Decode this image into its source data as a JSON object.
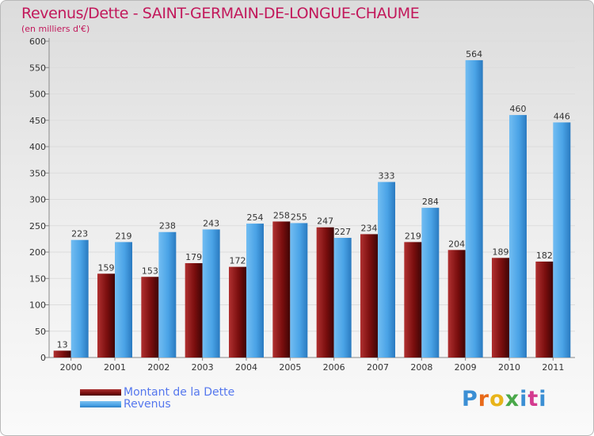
{
  "header": {
    "title": "Revenus/Dette - SAINT-GERMAIN-DE-LONGUE-CHAUME",
    "subtitle": "(en milliers d'€)"
  },
  "legend": {
    "items": [
      {
        "label": "Montant de la Dette",
        "color": "#7a0e0e"
      },
      {
        "label": "Revenus",
        "color": "#4aa3e6"
      }
    ]
  },
  "logo": {
    "text": "Proxiti",
    "colors": [
      "#3b8fd4",
      "#e86a1a",
      "#e8b41a",
      "#4aa84a",
      "#3b8fd4",
      "#d43b8f",
      "#3b8fd4"
    ]
  },
  "colors": {
    "dette": "#7a0e0e",
    "revenus": "#4aa3e6",
    "axis": "#888888",
    "grid": "#dddddd"
  },
  "chart_data": {
    "type": "bar",
    "title": "Revenus/Dette - SAINT-GERMAIN-DE-LONGUE-CHAUME",
    "ylabel": "(en milliers d'€)",
    "categories": [
      "2000",
      "2001",
      "2002",
      "2003",
      "2004",
      "2005",
      "2006",
      "2007",
      "2008",
      "2009",
      "2010",
      "2011"
    ],
    "series": [
      {
        "name": "Montant de la Dette",
        "values": [
          13,
          159,
          153,
          179,
          172,
          258,
          247,
          234,
          219,
          204,
          189,
          182
        ]
      },
      {
        "name": "Revenus",
        "values": [
          223,
          219,
          238,
          243,
          254,
          255,
          227,
          333,
          284,
          564,
          460,
          446
        ]
      }
    ],
    "ylim": [
      0,
      600
    ],
    "yticks": [
      0,
      50,
      100,
      150,
      200,
      250,
      300,
      350,
      400,
      450,
      500,
      550,
      600
    ],
    "grid": true,
    "legend_position": "bottom-left"
  }
}
